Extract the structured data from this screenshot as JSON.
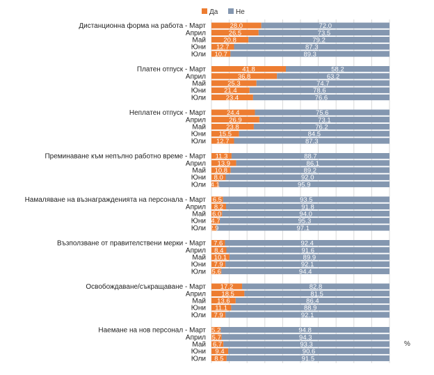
{
  "legend": [
    {
      "name": "Да",
      "color": "#ed7d31"
    },
    {
      "name": "Не",
      "color": "#8497b0"
    }
  ],
  "unit_label": "%",
  "chart_data": {
    "type": "bar",
    "orientation": "horizontal",
    "stacked": true,
    "xlim": [
      0,
      100
    ],
    "grid": true,
    "legend_position": "top",
    "groups": [
      {
        "category": "Дистанционна форма на работа",
        "rows": [
          {
            "label": "Дистанционна форма на работа - Март",
            "da": 28.0,
            "ne": 72.0,
            "da_text": "28.0",
            "ne_text": "72.0"
          },
          {
            "label": "Април",
            "da": 26.5,
            "ne": 73.5,
            "da_text": "26.5",
            "ne_text": "73.5"
          },
          {
            "label": "Май",
            "da": 20.8,
            "ne": 79.2,
            "da_text": "20.8",
            "ne_text": "79.2"
          },
          {
            "label": "Юни",
            "da": 12.7,
            "ne": 87.3,
            "da_text": "12.7",
            "ne_text": "87.3"
          },
          {
            "label": "Юли",
            "da": 10.7,
            "ne": 89.3,
            "da_text": "10.7",
            "ne_text": "89.3"
          }
        ]
      },
      {
        "category": "Платен отпуск",
        "rows": [
          {
            "label": "Платен отпуск - Март",
            "da": 41.8,
            "ne": 58.2,
            "da_text": "41.8",
            "ne_text": "58.2"
          },
          {
            "label": "Април",
            "da": 36.8,
            "ne": 63.2,
            "da_text": "36.8",
            "ne_text": "63.2"
          },
          {
            "label": "Май",
            "da": 25.3,
            "ne": 74.7,
            "da_text": "25.3",
            "ne_text": "74.7"
          },
          {
            "label": "Юни",
            "da": 21.4,
            "ne": 78.6,
            "da_text": "21.4",
            "ne_text": "78.6"
          },
          {
            "label": "Юли",
            "da": 23.4,
            "ne": 76.6,
            "da_text": "23.4",
            "ne_text": "76.6"
          }
        ]
      },
      {
        "category": "Неплатен отпуск",
        "rows": [
          {
            "label": "Неплатен отпуск - Март",
            "da": 24.4,
            "ne": 75.6,
            "da_text": "24.4",
            "ne_text": "75.6"
          },
          {
            "label": "Април",
            "da": 26.9,
            "ne": 73.1,
            "da_text": "26.9",
            "ne_text": "73.1"
          },
          {
            "label": "Май",
            "da": 23.8,
            "ne": 76.2,
            "da_text": "23.8",
            "ne_text": "76.2"
          },
          {
            "label": "Юни",
            "da": 15.5,
            "ne": 84.5,
            "da_text": "15.5",
            "ne_text": "84.5"
          },
          {
            "label": "Юли",
            "da": 12.7,
            "ne": 87.3,
            "da_text": "12.7",
            "ne_text": "87.3"
          }
        ]
      },
      {
        "category": "Преминаване към непълно работно време",
        "rows": [
          {
            "label": "Преминаване към непълно работно време - Март",
            "da": 11.3,
            "ne": 88.7,
            "da_text": "11.3",
            "ne_text": "88.7"
          },
          {
            "label": "Април",
            "da": 13.9,
            "ne": 86.1,
            "da_text": "13.9",
            "ne_text": "86.1"
          },
          {
            "label": "Май",
            "da": 10.8,
            "ne": 89.2,
            "da_text": "10.8",
            "ne_text": "89.2"
          },
          {
            "label": "Юни",
            "da": 8.0,
            "ne": 92.0,
            "da_text": "8.0",
            "ne_text": "92.0"
          },
          {
            "label": "Юли",
            "da": 4.1,
            "ne": 95.9,
            "da_text": "4.1",
            "ne_text": "95.9"
          }
        ]
      },
      {
        "category": "Намаляване на възнагражденията на персонала",
        "rows": [
          {
            "label": "Намаляване на възнагражденията на персонала - Март",
            "da": 6.5,
            "ne": 93.5,
            "da_text": "6.5",
            "ne_text": "93.5"
          },
          {
            "label": "Април",
            "da": 8.2,
            "ne": 91.8,
            "da_text": "8.2",
            "ne_text": "91.8"
          },
          {
            "label": "Май",
            "da": 6.0,
            "ne": 94.0,
            "da_text": "6.0",
            "ne_text": "94.0"
          },
          {
            "label": "Юни",
            "da": 4.7,
            "ne": 95.3,
            "da_text": "4.7",
            "ne_text": "95.3"
          },
          {
            "label": "Юли",
            "da": 2.9,
            "ne": 97.1,
            "da_text": "2.9",
            "ne_text": "97.1"
          }
        ]
      },
      {
        "category": "Възползване от правителствени мерки",
        "rows": [
          {
            "label": "Възползване от правителствени мерки - Март",
            "da": 7.6,
            "ne": 92.4,
            "da_text": "7.6",
            "ne_text": "92.4"
          },
          {
            "label": "Април",
            "da": 8.4,
            "ne": 91.6,
            "da_text": "8.4",
            "ne_text": "91.6"
          },
          {
            "label": "Май",
            "da": 10.1,
            "ne": 89.9,
            "da_text": "10.1",
            "ne_text": "89.9"
          },
          {
            "label": "Юни",
            "da": 7.9,
            "ne": 92.1,
            "da_text": "7.9",
            "ne_text": "92.1"
          },
          {
            "label": "Юли",
            "da": 5.6,
            "ne": 94.4,
            "da_text": "5.6",
            "ne_text": "94.4"
          }
        ]
      },
      {
        "category": "Освобождаване/съкращаване",
        "rows": [
          {
            "label": "Освобождаване/съкращаване - Март",
            "da": 17.2,
            "ne": 82.8,
            "da_text": "17.2",
            "ne_text": "82.8"
          },
          {
            "label": "Април",
            "da": 18.5,
            "ne": 81.5,
            "da_text": "18.5",
            "ne_text": "81.5"
          },
          {
            "label": "Май",
            "da": 13.6,
            "ne": 86.4,
            "da_text": "13.6",
            "ne_text": "86.4"
          },
          {
            "label": "Юни",
            "da": 11.1,
            "ne": 88.9,
            "da_text": "11.1",
            "ne_text": "88.9"
          },
          {
            "label": "Юли",
            "da": 7.9,
            "ne": 92.1,
            "da_text": "7.9",
            "ne_text": "92.1"
          }
        ]
      },
      {
        "category": "Наемане на нов персонал",
        "rows": [
          {
            "label": "Наемане на нов персонал - Март",
            "da": 5.2,
            "ne": 94.8,
            "da_text": "5.2",
            "ne_text": "94.8"
          },
          {
            "label": "Април",
            "da": 5.7,
            "ne": 94.3,
            "da_text": "5.7",
            "ne_text": "94.3"
          },
          {
            "label": "Май",
            "da": 6.7,
            "ne": 93.3,
            "da_text": "6.7",
            "ne_text": "93.3"
          },
          {
            "label": "Юни",
            "da": 9.4,
            "ne": 90.6,
            "da_text": "9.4",
            "ne_text": "90.6"
          },
          {
            "label": "Юли",
            "da": 8.5,
            "ne": 91.5,
            "da_text": "8.5",
            "ne_text": "91.5"
          }
        ]
      }
    ]
  }
}
